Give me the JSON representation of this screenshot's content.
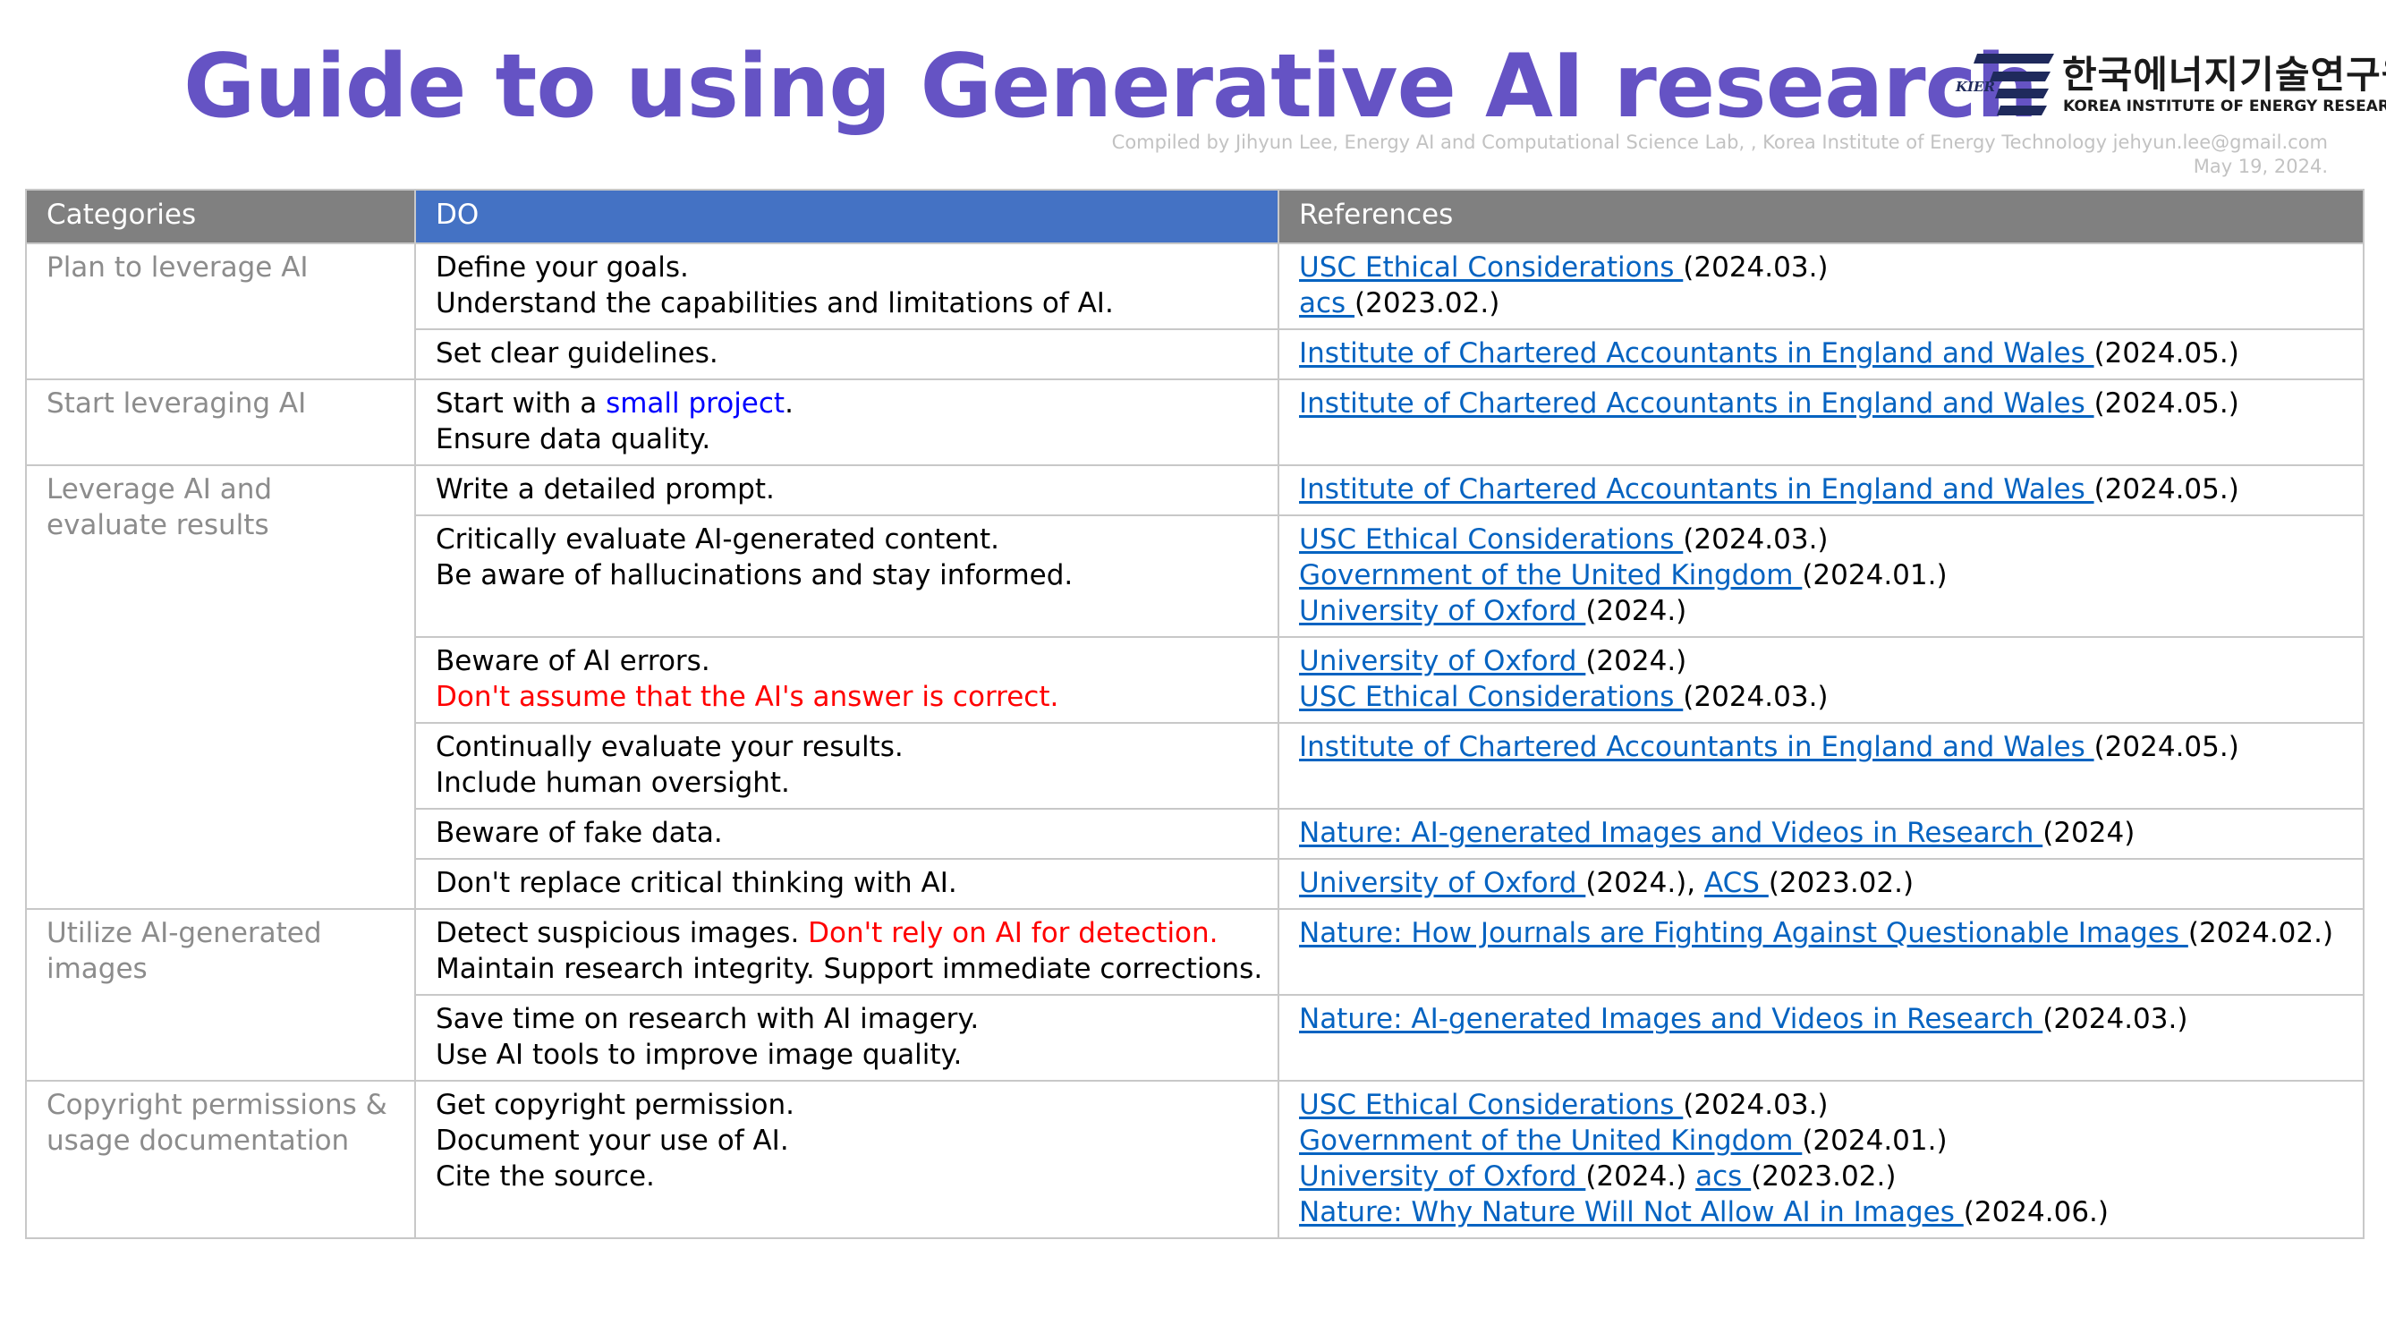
{
  "title": "Guide to using Generative AI research",
  "compiled_by": "Compiled by Jihyun Lee, Energy AI and Computational Science Lab, , Korea Institute of Energy Technology jehyun.lee@gmail.com",
  "date": "May 19, 2024.",
  "logo": {
    "mark_text": "KIER",
    "korean_name": "한국에너지기술연구원",
    "english_name": "KOREA INSTITUTE OF ENERGY RESEARCH",
    "brand_color": "#1f2a5c"
  },
  "colors": {
    "title": "#6553C4",
    "header_gray": "#808080",
    "header_blue": "#4472C4",
    "link": "#0563C1",
    "emphasis_red": "#ff0000",
    "emphasis_blue": "#0000ff",
    "category_text": "#8c8c8c"
  },
  "table": {
    "headers": [
      "Categories",
      "DO",
      "References"
    ],
    "categories": [
      "Plan to leverage AI",
      "Start leveraging AI",
      "Leverage AI and evaluate results",
      "Utilize AI-generated images",
      "Copyright permissions & usage documentation"
    ],
    "rows": [
      {
        "do": [
          [
            "Define your goals."
          ],
          [
            "Understand the capabilities and limitations of AI."
          ]
        ],
        "refs": [
          [
            {
              "link": "USC Ethical Considerations "
            },
            {
              "text": "(2024.03.)"
            }
          ],
          [
            {
              "link": "acs "
            },
            {
              "text": "(2023.02.)"
            }
          ]
        ]
      },
      {
        "do": [
          [
            "Set clear guidelines."
          ]
        ],
        "refs": [
          [
            {
              "link": "Institute of Chartered Accountants in England and Wales "
            },
            {
              "text": "(2024.05.)"
            }
          ]
        ]
      },
      {
        "do": [
          [
            "Start with a ",
            "small project",
            "."
          ],
          [
            "Ensure data quality."
          ]
        ],
        "refs": [
          [
            {
              "link": "Institute of Chartered Accountants in England and Wales "
            },
            {
              "text": "(2024.05.)"
            }
          ]
        ]
      },
      {
        "do": [
          [
            "Write a detailed prompt."
          ]
        ],
        "refs": [
          [
            {
              "link": "Institute of Chartered Accountants in England and Wales "
            },
            {
              "text": "(2024.05.)"
            }
          ]
        ]
      },
      {
        "do": [
          [
            "Critically evaluate AI-generated content."
          ],
          [
            "Be aware of hallucinations and stay informed."
          ]
        ],
        "refs": [
          [
            {
              "link": "USC Ethical Considerations "
            },
            {
              "text": "(2024.03.)"
            }
          ],
          [
            {
              "link": "Government of the United Kingdom "
            },
            {
              "text": "(2024.01.)"
            }
          ],
          [
            {
              "link": "University of Oxford "
            },
            {
              "text": "(2024.)"
            }
          ]
        ]
      },
      {
        "do": [
          [
            "Beware of AI errors."
          ],
          [
            "Don't assume that the AI's answer is correct."
          ]
        ],
        "refs": [
          [
            {
              "link": "University of Oxford "
            },
            {
              "text": "(2024.)"
            }
          ],
          [
            {
              "link": "USC Ethical Considerations "
            },
            {
              "text": "(2024.03.)"
            }
          ]
        ]
      },
      {
        "do": [
          [
            "Continually evaluate your results."
          ],
          [
            "Include human oversight."
          ]
        ],
        "refs": [
          [
            {
              "link": "Institute of Chartered Accountants in England and Wales "
            },
            {
              "text": "(2024.05.)"
            }
          ]
        ]
      },
      {
        "do": [
          [
            "Beware of fake data."
          ]
        ],
        "refs": [
          [
            {
              "link": "Nature: AI-generated Images and Videos in Research "
            },
            {
              "text": "(2024)"
            }
          ]
        ]
      },
      {
        "do": [
          [
            "Don't replace critical thinking with AI."
          ]
        ],
        "refs": [
          [
            {
              "link": "University of Oxford "
            },
            {
              "text": "(2024.), "
            },
            {
              "link": "ACS "
            },
            {
              "text": "(2023.02.)"
            }
          ]
        ]
      },
      {
        "do": [
          [
            "Detect suspicious images. ",
            "Don't rely on AI for detection."
          ],
          [
            "Maintain research integrity. Support immediate corrections."
          ]
        ],
        "refs": [
          [
            {
              "link": "Nature: How Journals are Fighting Against Questionable Images "
            },
            {
              "text": "(2024.02.)"
            }
          ]
        ]
      },
      {
        "do": [
          [
            "Save time on research with AI imagery."
          ],
          [
            "Use AI tools to improve image quality."
          ]
        ],
        "refs": [
          [
            {
              "link": "Nature: AI-generated Images and Videos in Research "
            },
            {
              "text": "(2024.03.)"
            }
          ]
        ]
      },
      {
        "do": [
          [
            "Get copyright permission."
          ],
          [
            "Document your use of AI."
          ],
          [
            "Cite the source."
          ]
        ],
        "refs": [
          [
            {
              "link": "USC Ethical Considerations "
            },
            {
              "text": "(2024.03.)"
            }
          ],
          [
            {
              "link": "Government of the United Kingdom "
            },
            {
              "text": "(2024.01.)"
            }
          ],
          [
            {
              "link": "University of Oxford "
            },
            {
              "text": "(2024.) "
            },
            {
              "link": "acs "
            },
            {
              "text": "(2023.02.)"
            }
          ],
          [
            {
              "link": "Nature: Why Nature Will Not Allow AI in Images "
            },
            {
              "text": "(2024.06.)"
            }
          ]
        ]
      }
    ]
  }
}
